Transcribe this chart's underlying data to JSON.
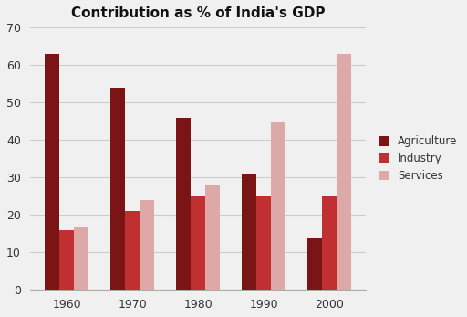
{
  "title": "Contribution as % of India's GDP",
  "years": [
    1960,
    1970,
    1980,
    1990,
    2000
  ],
  "agriculture": [
    63,
    54,
    46,
    31,
    14
  ],
  "industry": [
    16,
    21,
    25,
    25,
    25
  ],
  "services": [
    17,
    24,
    28,
    45,
    63
  ],
  "colors": {
    "agriculture": "#7B1515",
    "industry": "#C03030",
    "services": "#DDA8A8"
  },
  "ylim": [
    0,
    70
  ],
  "yticks": [
    0,
    10,
    20,
    30,
    40,
    50,
    60,
    70
  ],
  "legend_labels": [
    "Agriculture",
    "Industry",
    "Services"
  ],
  "bar_width": 0.22,
  "fig_bg": "#f0f0f0",
  "title_fontsize": 11
}
